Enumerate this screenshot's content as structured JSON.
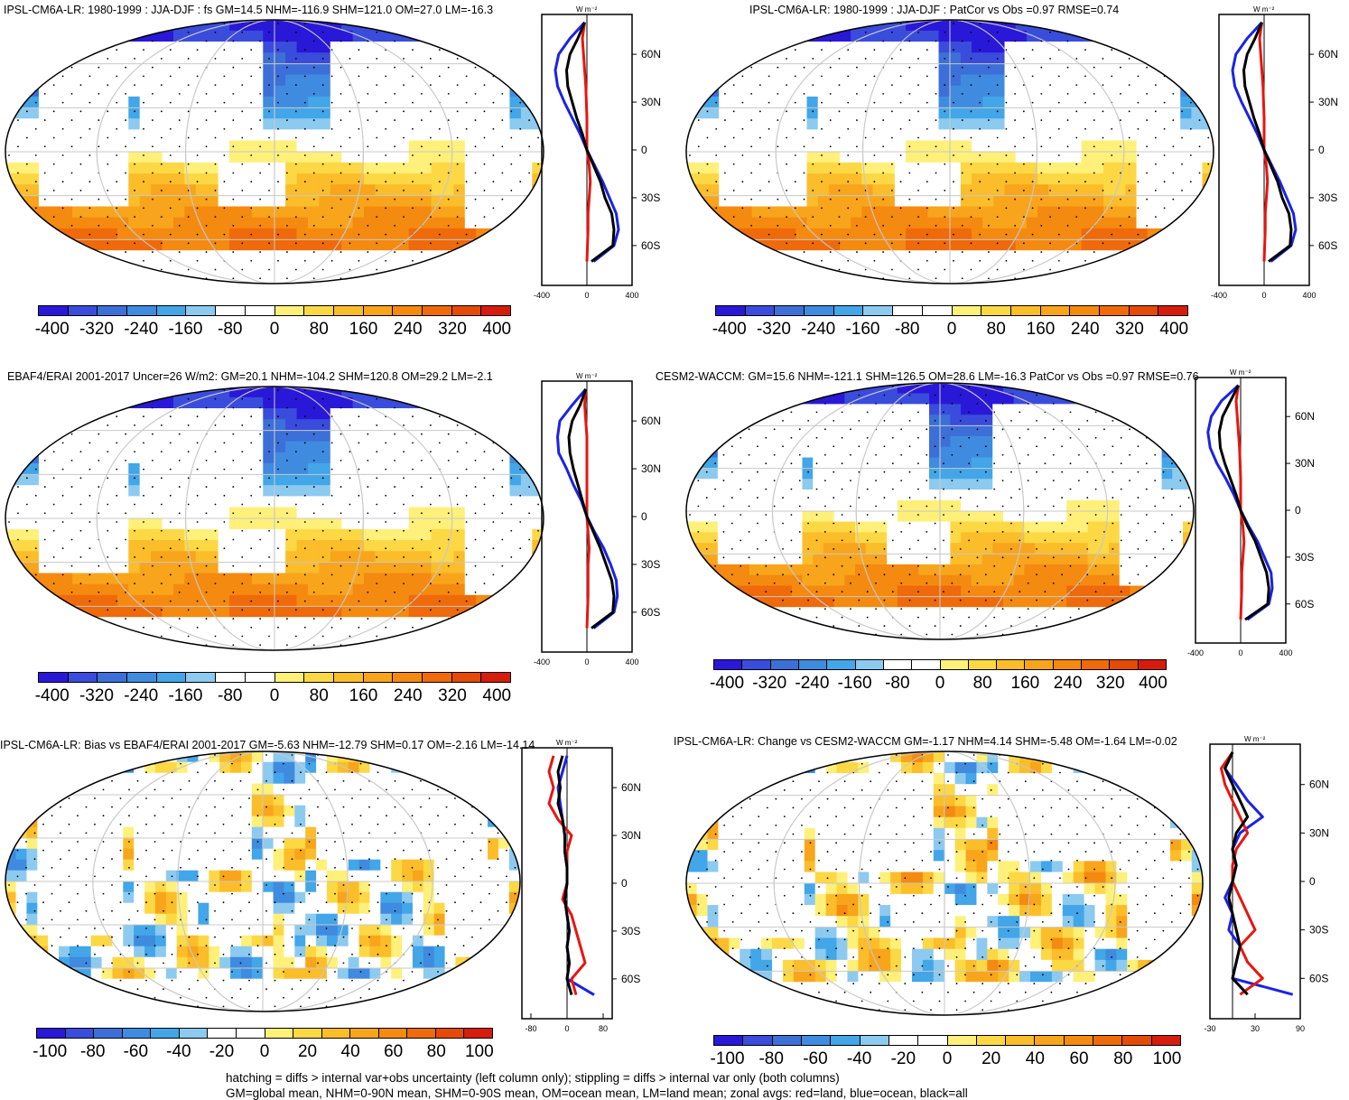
{
  "panels": [
    {
      "id": "p1",
      "title": "IPSL-CM6A-LR: 1980-1999 : JJA-DJF : fs GM=14.5 NHM=-116.9 SHM=121.0 OM=27.0 LM=-16.3",
      "colorbar_labels": [
        "-400",
        "-320",
        "-240",
        "-160",
        "-80",
        "0",
        "80",
        "160",
        "240",
        "320",
        "400"
      ],
      "zonal_ticks": [
        "-400",
        "0",
        "400"
      ],
      "lat_labels": [
        "60N",
        "30N",
        "0",
        "30S",
        "60S"
      ],
      "units": "W m⁻²"
    },
    {
      "id": "p2",
      "title": "IPSL-CM6A-LR: 1980-1999 : JJA-DJF : PatCor vs Obs =0.97 RMSE=0.74",
      "colorbar_labels": [
        "-400",
        "-320",
        "-240",
        "-160",
        "-80",
        "0",
        "80",
        "160",
        "240",
        "320",
        "400"
      ],
      "zonal_ticks": [
        "-400",
        "0",
        "400"
      ],
      "lat_labels": [
        "60N",
        "30N",
        "0",
        "30S",
        "60S"
      ],
      "units": "W m⁻²"
    },
    {
      "id": "p3",
      "title": "EBAF4/ERAI 2001-2017 Uncer=26 W/m2: GM=20.1 NHM=-104.2 SHM=120.8 OM=29.2 LM=-2.1",
      "colorbar_labels": [
        "-400",
        "-320",
        "-240",
        "-160",
        "-80",
        "0",
        "80",
        "160",
        "240",
        "320",
        "400"
      ],
      "zonal_ticks": [
        "-400",
        "0",
        "400"
      ],
      "lat_labels": [
        "60N",
        "30N",
        "0",
        "30S",
        "60S"
      ],
      "units": "W m⁻²"
    },
    {
      "id": "p4",
      "title": "CESM2-WACCM: GM=15.6 NHM=-121.1 SHM=126.5 OM=28.6 LM=-16.3 PatCor vs Obs =0.97 RMSE=0.76",
      "colorbar_labels": [
        "-400",
        "-320",
        "-240",
        "-160",
        "-80",
        "0",
        "80",
        "160",
        "240",
        "320",
        "400"
      ],
      "zonal_ticks": [
        "-400",
        "0",
        "400"
      ],
      "lat_labels": [
        "60N",
        "30N",
        "0",
        "30S",
        "60S"
      ],
      "units": "W m⁻²"
    },
    {
      "id": "p5",
      "title": "IPSL-CM6A-LR: Bias vs EBAF4/ERAI 2001-2017 GM=-5.63 NHM=-12.79 SHM=0.17 OM=-2.16 LM=-14.14",
      "colorbar_labels": [
        "-100",
        "-80",
        "-60",
        "-40",
        "-20",
        "0",
        "20",
        "40",
        "60",
        "80",
        "100"
      ],
      "zonal_ticks": [
        "-80",
        "0",
        "80"
      ],
      "lat_labels": [
        "60N",
        "30N",
        "0",
        "30S",
        "60S"
      ],
      "units": "W m⁻²"
    },
    {
      "id": "p6",
      "title": "IPSL-CM6A-LR: Change vs CESM2-WACCM GM=-1.17 NHM=4.14 SHM=-5.48 OM=-1.64 LM=-0.02",
      "colorbar_labels": [
        "-100",
        "-80",
        "-60",
        "-40",
        "-20",
        "0",
        "20",
        "40",
        "60",
        "80",
        "100"
      ],
      "zonal_ticks": [
        "-30",
        "30",
        "90"
      ],
      "lat_labels": [
        "60N",
        "30N",
        "0",
        "30S",
        "60S"
      ],
      "units": "W m⁻²"
    }
  ],
  "footer": {
    "line1": "hatching = diffs > internal var+obs uncertainty (left column only); stippling = diffs > internal var only (both columns)",
    "line2": "GM=global mean, NHM=0-90N mean, SHM=0-90S mean, OM=ocean mean, LM=land mean; zonal avgs: red=land, blue=ocean, black=all"
  },
  "colors": {
    "colorbar": [
      "#2a18d8",
      "#3a4cdc",
      "#3c6fd8",
      "#3f8be0",
      "#42a6e8",
      "#8ccaf0",
      "#ffffff",
      "#ffffff",
      "#fff07a",
      "#fdd845",
      "#fbbd2a",
      "#f8a51c",
      "#f58a10",
      "#ef6a0a",
      "#e44a08",
      "#d61c0c"
    ],
    "land": "#ffffff",
    "ocean_zonal": "#1a22e6",
    "land_zonal": "#e8150f",
    "all_zonal": "#000000"
  },
  "chart_data": [
    {
      "type": "heatmap",
      "title": "IPSL-CM6A-LR: 1980-1999 : JJA-DJF : fs GM=14.5 NHM=-116.9 SHM=121.0 OM=27.0 LM=-16.3",
      "colorbar_range": [
        -400,
        400
      ],
      "zonal_xlim": [
        -400,
        400
      ],
      "zonal_lat": [
        80,
        70,
        60,
        50,
        40,
        30,
        20,
        10,
        0,
        -10,
        -20,
        -30,
        -40,
        -50,
        -60,
        -70
      ],
      "zonal_all": [
        -20,
        -80,
        -150,
        -180,
        -170,
        -130,
        -90,
        -40,
        0,
        60,
        120,
        160,
        220,
        240,
        230,
        40
      ],
      "zonal_ocean": [
        -20,
        -150,
        -250,
        -280,
        -260,
        -200,
        -130,
        -60,
        0,
        70,
        140,
        200,
        260,
        280,
        240,
        60
      ],
      "zonal_land": [
        -20,
        -40,
        -30,
        -20,
        -10,
        -5,
        0,
        0,
        0,
        20,
        30,
        20,
        10,
        10,
        5,
        0
      ]
    },
    {
      "type": "heatmap",
      "title": "IPSL-CM6A-LR: 1980-1999 : JJA-DJF : PatCor vs Obs =0.97 RMSE=0.74",
      "colorbar_range": [
        -400,
        400
      ],
      "zonal_xlim": [
        -400,
        400
      ],
      "zonal_lat": [
        80,
        70,
        60,
        50,
        40,
        30,
        20,
        10,
        0,
        -10,
        -20,
        -30,
        -40,
        -50,
        -60,
        -70
      ],
      "zonal_all": [
        -20,
        -80,
        -150,
        -180,
        -170,
        -130,
        -90,
        -40,
        0,
        60,
        120,
        160,
        220,
        240,
        230,
        40
      ],
      "zonal_ocean": [
        -20,
        -150,
        -250,
        -280,
        -260,
        -200,
        -130,
        -60,
        0,
        70,
        140,
        200,
        260,
        280,
        240,
        60
      ],
      "zonal_land": [
        -20,
        -40,
        -30,
        -20,
        -10,
        -5,
        0,
        0,
        0,
        20,
        30,
        20,
        10,
        10,
        5,
        0
      ]
    },
    {
      "type": "heatmap",
      "title": "EBAF4/ERAI 2001-2017 Uncer=26 W/m2: GM=20.1 NHM=-104.2 SHM=120.8 OM=29.2 LM=-2.1",
      "colorbar_range": [
        -400,
        400
      ],
      "zonal_xlim": [
        -400,
        400
      ],
      "zonal_lat": [
        80,
        70,
        60,
        50,
        40,
        30,
        20,
        10,
        0,
        -10,
        -20,
        -30,
        -40,
        -50,
        -60,
        -70
      ],
      "zonal_all": [
        -10,
        -60,
        -130,
        -160,
        -150,
        -120,
        -80,
        -40,
        0,
        60,
        120,
        170,
        220,
        240,
        230,
        40
      ],
      "zonal_ocean": [
        -10,
        -130,
        -240,
        -260,
        -250,
        -180,
        -120,
        -50,
        0,
        70,
        150,
        210,
        260,
        270,
        240,
        60
      ],
      "zonal_land": [
        -10,
        -20,
        -10,
        0,
        0,
        0,
        0,
        0,
        0,
        10,
        20,
        10,
        10,
        10,
        5,
        0
      ]
    },
    {
      "type": "heatmap",
      "title": "CESM2-WACCM: GM=15.6 NHM=-121.1 SHM=126.5 OM=28.6 LM=-16.3 PatCor vs Obs =0.97 RMSE=0.76",
      "colorbar_range": [
        -400,
        400
      ],
      "zonal_xlim": [
        -400,
        400
      ],
      "zonal_lat": [
        80,
        70,
        60,
        50,
        40,
        30,
        20,
        10,
        0,
        -10,
        -20,
        -30,
        -40,
        -50,
        -60,
        -70
      ],
      "zonal_all": [
        -20,
        -90,
        -160,
        -190,
        -180,
        -140,
        -90,
        -40,
        0,
        60,
        130,
        180,
        230,
        250,
        240,
        40
      ],
      "zonal_ocean": [
        -20,
        -170,
        -260,
        -290,
        -270,
        -210,
        -130,
        -60,
        0,
        70,
        150,
        210,
        270,
        280,
        250,
        60
      ],
      "zonal_land": [
        -20,
        -40,
        -30,
        -20,
        -10,
        -5,
        0,
        0,
        0,
        20,
        30,
        20,
        10,
        10,
        5,
        0
      ]
    },
    {
      "type": "heatmap",
      "title": "IPSL-CM6A-LR: Bias vs EBAF4/ERAI 2001-2017 GM=-5.63 NHM=-12.79 SHM=0.17 OM=-2.16 LM=-14.14",
      "colorbar_range": [
        -100,
        100
      ],
      "zonal_xlim": [
        -100,
        100
      ],
      "zonal_lat": [
        80,
        70,
        60,
        50,
        40,
        30,
        20,
        10,
        0,
        -10,
        -20,
        -30,
        -40,
        -50,
        -60,
        -70
      ],
      "zonal_all": [
        -10,
        -20,
        -15,
        -20,
        -10,
        -5,
        -5,
        0,
        0,
        -5,
        0,
        5,
        0,
        5,
        0,
        10
      ],
      "zonal_ocean": [
        0,
        -10,
        -20,
        -15,
        -10,
        -5,
        -5,
        0,
        0,
        -5,
        0,
        5,
        0,
        5,
        0,
        60
      ],
      "zonal_land": [
        -30,
        -40,
        -30,
        -40,
        -20,
        10,
        0,
        0,
        0,
        -10,
        10,
        20,
        30,
        40,
        10,
        20
      ]
    },
    {
      "type": "heatmap",
      "title": "IPSL-CM6A-LR: Change vs CESM2-WACCM GM=-1.17 NHM=4.14 SHM=-5.48 OM=-1.64 LM=-0.02",
      "colorbar_range": [
        -100,
        100
      ],
      "zonal_xlim": [
        -30,
        90
      ],
      "zonal_lat": [
        80,
        70,
        60,
        50,
        40,
        30,
        20,
        10,
        0,
        -10,
        -20,
        -30,
        -40,
        -50,
        -60,
        -70
      ],
      "zonal_all": [
        0,
        -10,
        0,
        10,
        20,
        5,
        0,
        5,
        0,
        -5,
        0,
        5,
        10,
        5,
        0,
        20
      ],
      "zonal_ocean": [
        0,
        -10,
        5,
        20,
        40,
        10,
        0,
        5,
        0,
        -10,
        0,
        -5,
        10,
        5,
        0,
        80
      ],
      "zonal_land": [
        0,
        -15,
        -10,
        0,
        10,
        20,
        5,
        0,
        0,
        10,
        20,
        30,
        10,
        20,
        40,
        10
      ]
    }
  ]
}
